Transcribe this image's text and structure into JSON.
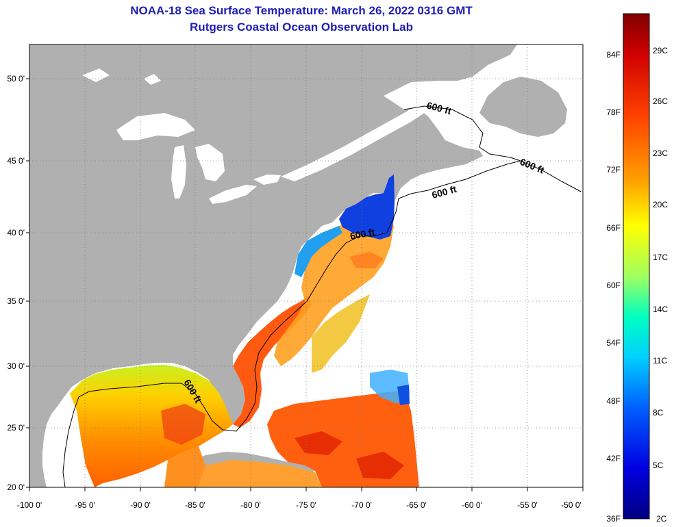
{
  "title": "NOAA-18 Sea Surface Temperature:  March 26, 2022 0316 GMT",
  "subtitle": "Rutgers Coastal Ocean Observation Lab",
  "lat_labels": [
    "50 0'",
    "45 0'",
    "40 0'",
    "35 0'",
    "30 0'",
    "25 0'",
    "20 0'"
  ],
  "lon_labels": [
    "-100 0'",
    "-95 0'",
    "-90 0'",
    "-85 0'",
    "-80 0'",
    "-75 0'",
    "-70 0'",
    "-65 0'",
    "-60 0'",
    "-55 0'",
    "-50 0'"
  ],
  "depth_label": "600 ft",
  "colorbar": {
    "fahrenheit": [
      "84F",
      "78F",
      "72F",
      "66F",
      "60F",
      "54F",
      "48F",
      "42F",
      "36F"
    ],
    "celsius": [
      "29C",
      "26C",
      "23C",
      "20C",
      "17C",
      "14C",
      "11C",
      "8C",
      "5C",
      "2C"
    ]
  },
  "colors": {
    "land": "#b0b0b0",
    "no_data": "#ffffff",
    "title": "#1e1eb4"
  }
}
